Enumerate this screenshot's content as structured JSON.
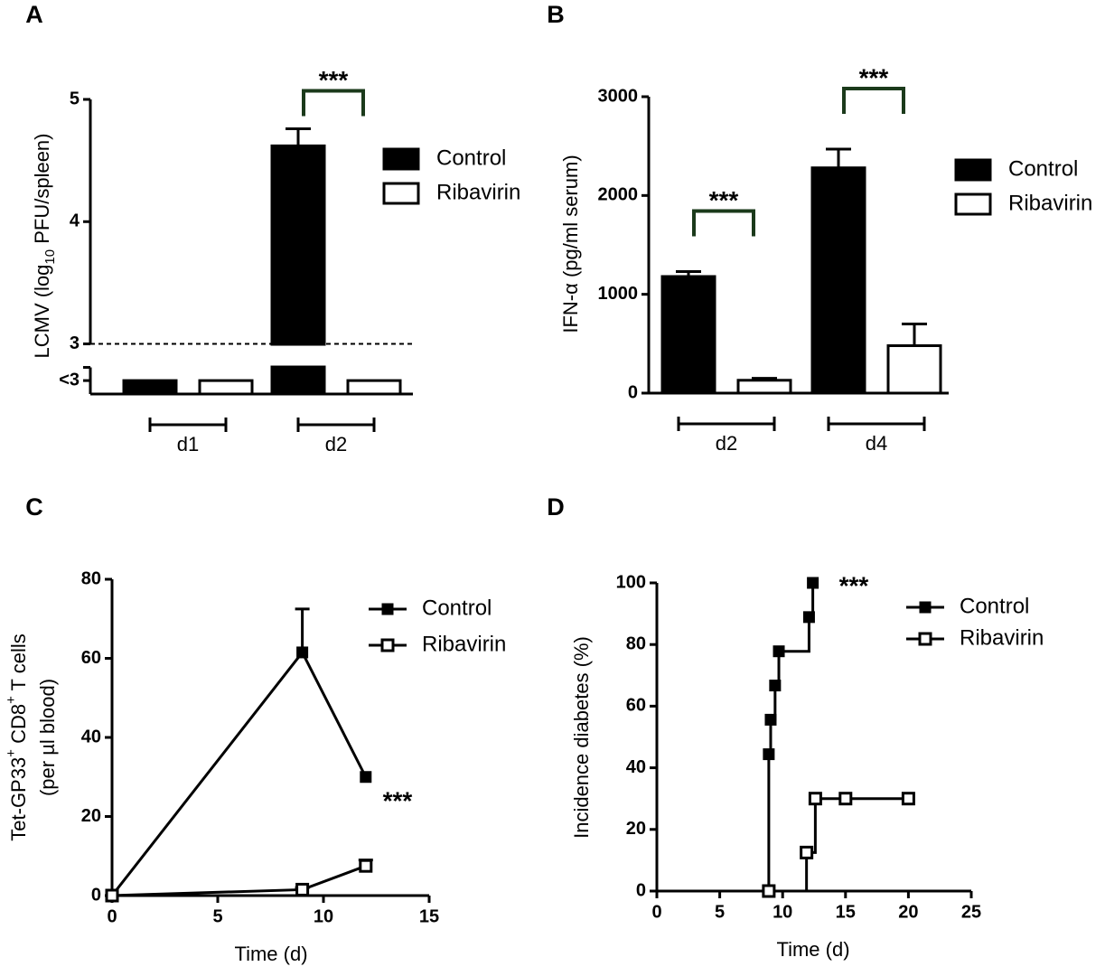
{
  "chart_data": [
    {
      "type": "bar",
      "panel_label": "A",
      "ylabel": [
        "LCMV (log",
        "10",
        " PFU/spleen)"
      ],
      "categories": [
        "d1",
        "d2"
      ],
      "series": [
        {
          "name": "Control",
          "color": "#000000",
          "values": [
            2.7,
            4.62
          ],
          "errors": [
            null,
            0.14
          ]
        },
        {
          "name": "Ribavirin",
          "color": "#ffffff",
          "values": [
            2.7,
            2.7
          ],
          "errors": [
            null,
            null
          ]
        }
      ],
      "ylim": [
        2.59,
        5
      ],
      "yticks": [
        {
          "value": 2.7,
          "label": "<3"
        },
        3,
        4,
        5
      ],
      "axis_break": true,
      "reference_line": 3,
      "annotations": [
        {
          "text": "***",
          "group": "d2"
        }
      ],
      "significance_color": "#1b3a1b"
    },
    {
      "type": "bar",
      "panel_label": "B",
      "ylabel": [
        "IFN-α (pg/ml serum)"
      ],
      "categories": [
        "d2",
        "d4"
      ],
      "series": [
        {
          "name": "Control",
          "color": "#000000",
          "values": [
            1180,
            2280
          ],
          "errors": [
            50,
            190
          ]
        },
        {
          "name": "Ribavirin",
          "color": "#ffffff",
          "values": [
            130,
            480
          ],
          "errors": [
            20,
            220
          ]
        }
      ],
      "ylim": [
        0,
        3000
      ],
      "yticks": [
        0,
        1000,
        2000,
        3000
      ],
      "axis_break": false,
      "annotations": [
        {
          "text": "***",
          "group": "d2"
        },
        {
          "text": "***",
          "group": "d4"
        }
      ],
      "significance_color": "#1b3a1b"
    },
    {
      "type": "line",
      "panel_label": "C",
      "ylabel": [
        [
          "Tet-GP33",
          "+",
          " CD8",
          "+",
          " T cells"
        ],
        [
          "(per µl blood)"
        ]
      ],
      "xlabel": "Time (d)",
      "series": [
        {
          "name": "Control",
          "color": "#000000",
          "marker": "filled",
          "x": [
            0,
            9,
            12
          ],
          "values": [
            0,
            61.5,
            30
          ],
          "errors": [
            0,
            11,
            0
          ]
        },
        {
          "name": "Ribavirin",
          "color": "#000000",
          "marker": "open",
          "x": [
            0,
            9,
            12
          ],
          "values": [
            0,
            1.5,
            7.5
          ],
          "errors": [
            0,
            0.5,
            1.5
          ]
        }
      ],
      "xlim": [
        0,
        15
      ],
      "xticks": [
        0,
        5,
        10,
        15
      ],
      "ylim": [
        0,
        80
      ],
      "yticks": [
        0,
        20,
        40,
        60,
        80
      ],
      "step": false,
      "annotations": [
        {
          "text": "***"
        }
      ]
    },
    {
      "type": "line",
      "panel_label": "D",
      "ylabel": [
        [
          "Incidence diabetes (%)"
        ]
      ],
      "xlabel": "Time (d)",
      "series": [
        {
          "name": "Control",
          "color": "#000000",
          "marker": "filled",
          "x": [
            8.9,
            9.05,
            9.4,
            9.7,
            12.1,
            12.4
          ],
          "values": [
            44.4,
            55.6,
            66.7,
            77.8,
            88.9,
            100
          ]
        },
        {
          "name": "Ribavirin",
          "color": "#000000",
          "marker": "open",
          "x": [
            8.9,
            11.9,
            12.6,
            15,
            20
          ],
          "values": [
            0,
            12.5,
            30,
            30,
            30
          ]
        }
      ],
      "xlim": [
        0,
        25
      ],
      "xticks": [
        0,
        5,
        10,
        15,
        20,
        25
      ],
      "ylim": [
        0,
        100
      ],
      "yticks": [
        0,
        20,
        40,
        60,
        80,
        100
      ],
      "step": true,
      "annotations": [
        {
          "text": "***"
        }
      ]
    }
  ]
}
